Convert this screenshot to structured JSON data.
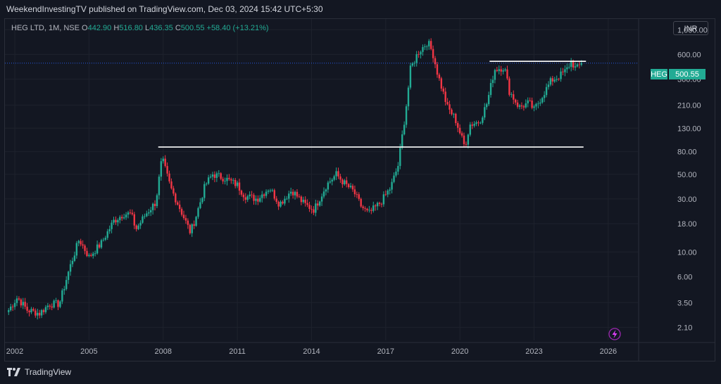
{
  "header": {
    "published": "WeekendInvestingTV published on TradingView.com, Dec 03, 2024 15:42 UTC+5:30"
  },
  "legend": {
    "symbol": "HEG LTD, 1M, NSE",
    "open_label": "O",
    "open": "442.90",
    "high_label": "H",
    "high": "516.80",
    "low_label": "L",
    "low": "436.35",
    "close_label": "C",
    "close": "500.55",
    "change": "+58.40 (+13.21%)"
  },
  "currency": "INR",
  "price_tag": {
    "symbol": "HEG",
    "value": "500.55"
  },
  "footer": {
    "brand": "TradingView"
  },
  "colors": {
    "up": "#22ab94",
    "down": "#f23645",
    "background": "#131722",
    "grid": "#2a2e39",
    "lines": "#ffffff"
  },
  "chart_data": {
    "type": "candlestick",
    "scale": "log",
    "ylim": [
      1.6,
      1250
    ],
    "xlim": [
      2001.6,
      2027.2
    ],
    "y_ticks": [
      "1,000.00",
      "600.00",
      "360.00",
      "210.00",
      "130.00",
      "80.00",
      "50.00",
      "30.00",
      "18.00",
      "10.00",
      "6.00",
      "3.50",
      "2.10"
    ],
    "y_tick_values": [
      1000,
      600,
      360,
      210,
      130,
      80,
      50,
      30,
      18,
      10,
      6,
      3.5,
      2.1
    ],
    "x_ticks": [
      "2002",
      "2005",
      "2008",
      "2011",
      "2014",
      "2017",
      "2020",
      "2023",
      "2026"
    ],
    "x_tick_values": [
      2002,
      2005,
      2008,
      2011,
      2014,
      2017,
      2020,
      2023,
      2026
    ],
    "last_price": 500.55,
    "horizontal_lines": [
      {
        "from": 2007.8,
        "to": 2025.0,
        "price": 88
      },
      {
        "from": 2021.2,
        "to": 2025.1,
        "price": 520
      }
    ],
    "price_path": [
      [
        2001.75,
        3.0
      ],
      [
        2002.1,
        3.9
      ],
      [
        2002.5,
        3.0
      ],
      [
        2003.0,
        2.8
      ],
      [
        2003.4,
        3.4
      ],
      [
        2003.8,
        3.4
      ],
      [
        2004.2,
        7.0
      ],
      [
        2004.6,
        13.0
      ],
      [
        2005.0,
        9.0
      ],
      [
        2005.5,
        12.0
      ],
      [
        2006.0,
        19.0
      ],
      [
        2006.4,
        22.0
      ],
      [
        2006.7,
        22.0
      ],
      [
        2006.9,
        16.0
      ],
      [
        2007.3,
        22.0
      ],
      [
        2007.7,
        28.0
      ],
      [
        2007.95,
        70.0
      ],
      [
        2008.3,
        38.0
      ],
      [
        2008.7,
        24.0
      ],
      [
        2009.1,
        15.0
      ],
      [
        2009.3,
        20.0
      ],
      [
        2009.7,
        40.0
      ],
      [
        2010.0,
        50.0
      ],
      [
        2010.5,
        46.0
      ],
      [
        2011.0,
        40.0
      ],
      [
        2011.3,
        32.0
      ],
      [
        2011.8,
        30.0
      ],
      [
        2012.3,
        38.0
      ],
      [
        2012.7,
        27.0
      ],
      [
        2013.2,
        36.0
      ],
      [
        2013.7,
        27.0
      ],
      [
        2014.1,
        24.0
      ],
      [
        2014.6,
        40.0
      ],
      [
        2015.0,
        50.0
      ],
      [
        2015.3,
        42.0
      ],
      [
        2015.7,
        35.0
      ],
      [
        2016.0,
        26.0
      ],
      [
        2016.3,
        22.0
      ],
      [
        2016.8,
        28.0
      ],
      [
        2017.2,
        38.0
      ],
      [
        2017.5,
        60.0
      ],
      [
        2017.8,
        180.0
      ],
      [
        2018.0,
        440.0
      ],
      [
        2018.3,
        620.0
      ],
      [
        2018.7,
        780.0
      ],
      [
        2018.9,
        620.0
      ],
      [
        2019.1,
        400.0
      ],
      [
        2019.5,
        200.0
      ],
      [
        2019.8,
        160.0
      ],
      [
        2020.2,
        88.0
      ],
      [
        2020.4,
        140.0
      ],
      [
        2020.8,
        150.0
      ],
      [
        2021.1,
        220.0
      ],
      [
        2021.4,
        440.0
      ],
      [
        2021.8,
        460.0
      ],
      [
        2022.0,
        280.0
      ],
      [
        2022.4,
        200.0
      ],
      [
        2022.8,
        220.0
      ],
      [
        2023.0,
        190.0
      ],
      [
        2023.4,
        270.0
      ],
      [
        2023.7,
        350.0
      ],
      [
        2024.0,
        380.0
      ],
      [
        2024.3,
        430.0
      ],
      [
        2024.5,
        520.0
      ],
      [
        2024.7,
        440.0
      ],
      [
        2024.92,
        500.55
      ]
    ]
  }
}
